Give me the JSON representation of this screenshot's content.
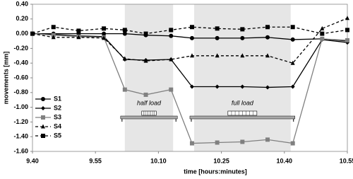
{
  "chart_data": {
    "type": "line",
    "x": [
      580,
      585,
      591,
      597,
      602,
      607,
      613,
      618,
      624,
      630,
      636,
      642,
      649,
      655
    ],
    "xlim": [
      580,
      655
    ],
    "xticks": [
      {
        "value": 580,
        "label": "9.40"
      },
      {
        "value": 595,
        "label": "9.55"
      },
      {
        "value": 610,
        "label": "10.10"
      },
      {
        "value": 625,
        "label": "10.25"
      },
      {
        "value": 640,
        "label": "10.40"
      },
      {
        "value": 655,
        "label": "10.55"
      }
    ],
    "ylim": [
      -1.6,
      0.4
    ],
    "yticks": [
      {
        "value": 0.4,
        "label": "0.40"
      },
      {
        "value": 0.2,
        "label": "0.20"
      },
      {
        "value": 0,
        "label": "0.00"
      },
      {
        "value": -0.2,
        "label": "-0.20"
      },
      {
        "value": -0.4,
        "label": "-0.40"
      },
      {
        "value": -0.6,
        "label": "-0.60"
      },
      {
        "value": -0.8,
        "label": "-0.80"
      },
      {
        "value": -1,
        "label": "-1.00"
      },
      {
        "value": -1.2,
        "label": "-1.20"
      },
      {
        "value": -1.4,
        "label": "-1.40"
      },
      {
        "value": -1.6,
        "label": "-1.60"
      }
    ],
    "xlabel": "time [hours:minutes]",
    "ylabel": "movements [mm]",
    "legend": "lower left",
    "shaded_regions": [
      {
        "x": [
          602,
          613.5
        ],
        "label": "half load"
      },
      {
        "x": [
          618.5,
          641.5
        ],
        "label": "full load"
      }
    ],
    "series": [
      {
        "name": "S1",
        "color": "#000000",
        "marker": "circle",
        "dash": false,
        "values": [
          0,
          0,
          0,
          0,
          0,
          -0.02,
          -0.03,
          -0.06,
          -0.06,
          -0.06,
          -0.05,
          -0.08,
          -0.07,
          -0.1
        ]
      },
      {
        "name": "S2",
        "color": "#000000",
        "marker": "diamond",
        "dash": false,
        "values": [
          0,
          -0.01,
          -0.03,
          -0.04,
          -0.35,
          -0.36,
          -0.35,
          -0.72,
          -0.72,
          -0.72,
          -0.73,
          -0.72,
          -0.08,
          -0.12
        ]
      },
      {
        "name": "S3",
        "color": "#808080",
        "marker": "square",
        "dash": false,
        "values": [
          0,
          -0.02,
          -0.04,
          -0.05,
          -0.76,
          -0.83,
          -0.76,
          -1.49,
          -1.48,
          -1.47,
          -1.44,
          -1.49,
          -0.07,
          -0.09
        ]
      },
      {
        "name": "S4",
        "color": "#000000",
        "marker": "triangle",
        "dash": true,
        "values": [
          0,
          -0.05,
          -0.05,
          -0.06,
          -0.34,
          -0.37,
          -0.35,
          -0.3,
          -0.3,
          -0.3,
          -0.3,
          -0.4,
          0.07,
          0.21
        ]
      },
      {
        "name": "S5",
        "color": "#000000",
        "marker": "square",
        "dash": true,
        "values": [
          0,
          0.09,
          0.04,
          0.07,
          0.05,
          0,
          0.05,
          0.09,
          0.07,
          0.06,
          0.09,
          0.09,
          0,
          0.05
        ]
      }
    ]
  }
}
